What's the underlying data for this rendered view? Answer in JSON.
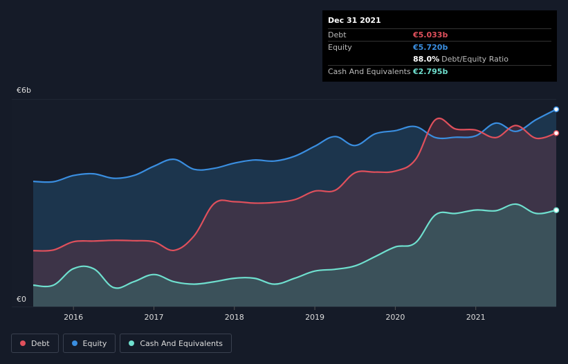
{
  "chart_data": {
    "type": "area",
    "y_unit": "€",
    "ylim": [
      0,
      6
    ],
    "y_ticks": [
      {
        "value": 0,
        "label": "€0"
      },
      {
        "value": 6,
        "label": "€6b"
      }
    ],
    "x_ticks": [
      {
        "value": 2016,
        "label": "2016"
      },
      {
        "value": 2017,
        "label": "2017"
      },
      {
        "value": 2018,
        "label": "2018"
      },
      {
        "value": 2019,
        "label": "2019"
      },
      {
        "value": 2020,
        "label": "2020"
      },
      {
        "value": 2021,
        "label": "2021"
      }
    ],
    "xlim": [
      2015.5,
      2022.0
    ],
    "grid": true,
    "series": [
      {
        "name": "Equity",
        "color": "#3a8ee0",
        "points": [
          [
            2015.5,
            3.63
          ],
          [
            2015.75,
            3.62
          ],
          [
            2016.0,
            3.8
          ],
          [
            2016.25,
            3.85
          ],
          [
            2016.5,
            3.72
          ],
          [
            2016.75,
            3.8
          ],
          [
            2017.0,
            4.07
          ],
          [
            2017.25,
            4.27
          ],
          [
            2017.5,
            3.98
          ],
          [
            2017.75,
            4.01
          ],
          [
            2018.0,
            4.16
          ],
          [
            2018.25,
            4.25
          ],
          [
            2018.5,
            4.22
          ],
          [
            2018.75,
            4.36
          ],
          [
            2019.0,
            4.65
          ],
          [
            2019.25,
            4.93
          ],
          [
            2019.5,
            4.67
          ],
          [
            2019.75,
            5.01
          ],
          [
            2020.0,
            5.1
          ],
          [
            2020.25,
            5.22
          ],
          [
            2020.5,
            4.9
          ],
          [
            2020.75,
            4.91
          ],
          [
            2021.0,
            4.95
          ],
          [
            2021.25,
            5.32
          ],
          [
            2021.5,
            5.08
          ],
          [
            2021.75,
            5.42
          ],
          [
            2022.0,
            5.72
          ]
        ]
      },
      {
        "name": "Debt",
        "color": "#e0505c",
        "points": [
          [
            2015.5,
            1.62
          ],
          [
            2015.75,
            1.64
          ],
          [
            2016.0,
            1.88
          ],
          [
            2016.25,
            1.9
          ],
          [
            2016.5,
            1.92
          ],
          [
            2016.75,
            1.91
          ],
          [
            2017.0,
            1.88
          ],
          [
            2017.25,
            1.63
          ],
          [
            2017.5,
            2.05
          ],
          [
            2017.75,
            2.99
          ],
          [
            2018.0,
            3.04
          ],
          [
            2018.25,
            3.0
          ],
          [
            2018.5,
            3.02
          ],
          [
            2018.75,
            3.1
          ],
          [
            2019.0,
            3.35
          ],
          [
            2019.25,
            3.37
          ],
          [
            2019.5,
            3.88
          ],
          [
            2019.75,
            3.9
          ],
          [
            2020.0,
            3.93
          ],
          [
            2020.25,
            4.26
          ],
          [
            2020.5,
            5.42
          ],
          [
            2020.75,
            5.15
          ],
          [
            2021.0,
            5.12
          ],
          [
            2021.25,
            4.9
          ],
          [
            2021.5,
            5.25
          ],
          [
            2021.75,
            4.88
          ],
          [
            2022.0,
            5.03
          ]
        ]
      },
      {
        "name": "Cash And Equivalents",
        "color": "#6fe0cf",
        "points": [
          [
            2015.5,
            0.62
          ],
          [
            2015.75,
            0.62
          ],
          [
            2016.0,
            1.1
          ],
          [
            2016.25,
            1.1
          ],
          [
            2016.5,
            0.55
          ],
          [
            2016.75,
            0.72
          ],
          [
            2017.0,
            0.93
          ],
          [
            2017.25,
            0.72
          ],
          [
            2017.5,
            0.65
          ],
          [
            2017.75,
            0.72
          ],
          [
            2018.0,
            0.82
          ],
          [
            2018.25,
            0.82
          ],
          [
            2018.5,
            0.65
          ],
          [
            2018.75,
            0.82
          ],
          [
            2019.0,
            1.03
          ],
          [
            2019.25,
            1.08
          ],
          [
            2019.5,
            1.18
          ],
          [
            2019.75,
            1.45
          ],
          [
            2020.0,
            1.73
          ],
          [
            2020.25,
            1.85
          ],
          [
            2020.5,
            2.66
          ],
          [
            2020.75,
            2.7
          ],
          [
            2021.0,
            2.8
          ],
          [
            2021.25,
            2.78
          ],
          [
            2021.5,
            2.97
          ],
          [
            2021.75,
            2.7
          ],
          [
            2022.0,
            2.795
          ]
        ]
      }
    ]
  },
  "tooltip": {
    "date": "Dec 31 2021",
    "rows": [
      {
        "label": "Debt",
        "value": "€5.033b",
        "color": "#e0505c"
      },
      {
        "label": "Equity",
        "value": "€5.720b",
        "color": "#3a8ee0"
      },
      {
        "label": "",
        "value": "88.0%",
        "sub": "Debt/Equity Ratio",
        "color": "#ffffff"
      },
      {
        "label": "Cash And Equivalents",
        "value": "€2.795b",
        "color": "#6fe0cf"
      }
    ]
  },
  "legend": [
    {
      "label": "Debt",
      "color": "#e0505c"
    },
    {
      "label": "Equity",
      "color": "#3a8ee0"
    },
    {
      "label": "Cash And Equivalents",
      "color": "#6fe0cf"
    }
  ]
}
